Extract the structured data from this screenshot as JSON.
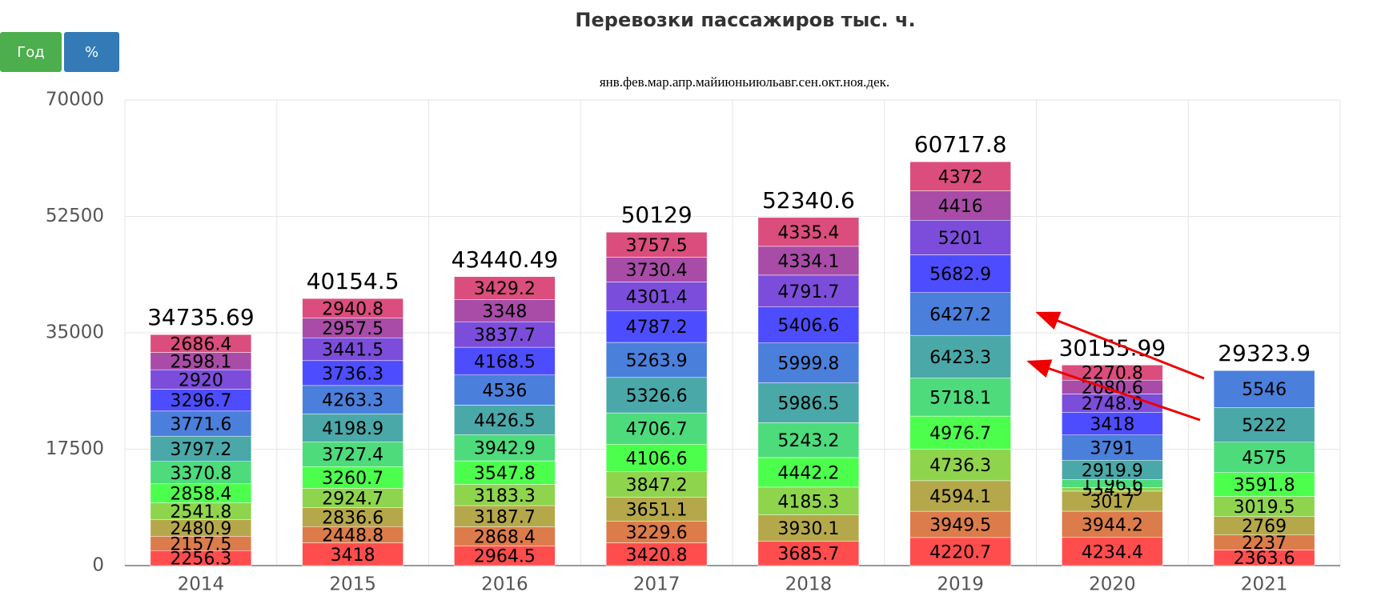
{
  "buttons": [
    "Год",
    "%"
  ],
  "chart_data": {
    "type": "stacked-bar",
    "title": "Перевозки пассажиров тыс. ч.",
    "categories": [
      "2014",
      "2015",
      "2016",
      "2017",
      "2018",
      "2019",
      "2020",
      "2021"
    ],
    "series": [
      {
        "name": "янв.",
        "color": "#ff4d4d",
        "values": [
          2256.3,
          3418,
          2964.5,
          3420.8,
          3685.7,
          4220.7,
          4234.4,
          2363.6
        ]
      },
      {
        "name": "фев.",
        "color": "#db7c4a",
        "values": [
          2157.5,
          2448.8,
          2868.4,
          3229.6,
          null,
          3949.5,
          3944.2,
          2237
        ]
      },
      {
        "name": "мар.",
        "color": "#b5a84a",
        "values": [
          2480.9,
          2836.6,
          3187.7,
          3651.1,
          3930.1,
          4594.1,
          3017,
          2769
        ]
      },
      {
        "name": "апр.",
        "color": "#8fd44d",
        "values": [
          2541.8,
          2924.7,
          3183.3,
          3847.2,
          4185.3,
          4736.3,
          534.59,
          3019.5
        ]
      },
      {
        "name": "май",
        "color": "#4dff4d",
        "values": [
          2858.4,
          3260.7,
          3547.8,
          4106.6,
          4442.2,
          4976.7,
          null,
          3591.8
        ]
      },
      {
        "name": "июнь",
        "color": "#4ddb7c",
        "values": [
          3370.8,
          3727.4,
          3942.9,
          4706.7,
          5243.2,
          5718.1,
          1196.6,
          4575
        ]
      },
      {
        "name": "июль",
        "color": "#4aa8a8",
        "values": [
          3797.2,
          4198.9,
          4426.5,
          5326.6,
          5986.5,
          6423.3,
          2919.9,
          5222
        ]
      },
      {
        "name": "авг.",
        "color": "#4a7fdb",
        "values": [
          3771.6,
          4263.3,
          4536,
          5263.9,
          5999.8,
          6427.2,
          3791,
          5546
        ]
      },
      {
        "name": "сен.",
        "color": "#4d4dff",
        "values": [
          3296.7,
          3736.3,
          4168.5,
          4787.2,
          5406.6,
          5682.9,
          3418,
          null
        ]
      },
      {
        "name": "окт.",
        "color": "#7c4ddb",
        "values": [
          2920,
          3441.5,
          3837.7,
          4301.4,
          4791.7,
          5201,
          2748.9,
          null
        ]
      },
      {
        "name": "ноя.",
        "color": "#a84ca8",
        "values": [
          2598.1,
          2957.5,
          3348,
          3730.4,
          4334.1,
          4416,
          2080.6,
          null
        ]
      },
      {
        "name": "дек.",
        "color": "#db4d7c",
        "values": [
          2686.4,
          2940.8,
          3429.2,
          3757.5,
          4335.4,
          4372,
          2270.8,
          null
        ]
      }
    ],
    "totals": [
      34735.69,
      40154.5,
      43440.49,
      50129,
      52340.6,
      60717.8,
      30155.99,
      29323.9
    ],
    "ylim": [
      0,
      70000
    ],
    "yticks": [
      0,
      17500,
      35000,
      52500,
      70000
    ],
    "grid": true
  }
}
